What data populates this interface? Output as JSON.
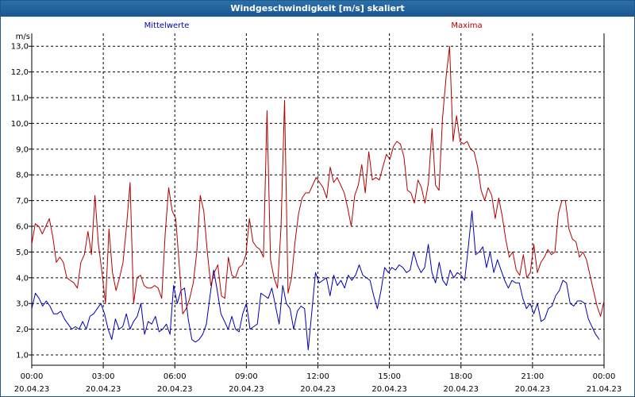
{
  "window": {
    "title": "Windgeschwindigkeit [m/s] skaliert"
  },
  "colors": {
    "mean": "#0000b4",
    "max": "#b40000",
    "grid": "#000000",
    "axis": "#000000"
  },
  "chart_data": {
    "type": "line",
    "title": "Windgeschwindigkeit [m/s] skaliert",
    "ylabel": "m/s",
    "xlabel": "",
    "ylim": [
      0.6,
      13.5
    ],
    "yticks": [
      "1,0",
      "2,0",
      "3,0",
      "4,0",
      "5,0",
      "6,0",
      "7,0",
      "8,0",
      "9,0",
      "10,0",
      "11,0",
      "12,0",
      "13,0"
    ],
    "ytick_values": [
      1,
      2,
      3,
      4,
      5,
      6,
      7,
      8,
      9,
      10,
      11,
      12,
      13
    ],
    "xlim_hours": [
      0,
      24
    ],
    "xticks": [
      {
        "time": "00:00",
        "date": "20.04.23"
      },
      {
        "time": "03:00",
        "date": "20.04.23"
      },
      {
        "time": "06:00",
        "date": "20.04.23"
      },
      {
        "time": "09:00",
        "date": "20.04.23"
      },
      {
        "time": "12:00",
        "date": "20.04.23"
      },
      {
        "time": "15:00",
        "date": "20.04.23"
      },
      {
        "time": "18:00",
        "date": "20.04.23"
      },
      {
        "time": "21:00",
        "date": "20.04.23"
      },
      {
        "time": "00:00",
        "date": "21.04.23"
      }
    ],
    "grid": true,
    "series": [
      {
        "name": "Mittelwerte",
        "color": "#0000b4",
        "values": [
          2.8,
          3.4,
          3.2,
          2.9,
          3.1,
          2.9,
          2.6,
          2.6,
          2.7,
          2.4,
          2.2,
          2.0,
          2.1,
          2.0,
          2.3,
          2.0,
          2.5,
          2.6,
          2.8,
          3.0,
          2.6,
          2.0,
          1.6,
          2.4,
          2.0,
          2.1,
          2.6,
          2.0,
          2.3,
          2.5,
          3.0,
          1.8,
          2.3,
          2.2,
          2.5,
          1.9,
          2.0,
          2.2,
          1.8,
          3.7,
          3.0,
          3.5,
          3.6,
          2.4,
          1.6,
          1.5,
          1.6,
          1.8,
          2.2,
          3.3,
          4.3,
          3.5,
          2.6,
          2.3,
          2.0,
          2.5,
          2.0,
          1.9,
          2.6,
          3.0,
          2.0,
          2.1,
          2.2,
          3.4,
          3.3,
          3.2,
          3.6,
          2.9,
          2.2,
          3.7,
          3.0,
          2.8,
          2.0,
          2.7,
          2.9,
          2.8,
          1.2,
          2.7,
          4.2,
          3.8,
          3.9,
          4.0,
          3.3,
          4.1,
          3.7,
          3.9,
          3.6,
          4.1,
          3.9,
          4.1,
          4.5,
          4.1,
          4.0,
          3.9,
          3.3,
          2.8,
          3.5,
          4.4,
          4.2,
          4.4,
          4.3,
          4.5,
          4.4,
          4.2,
          4.3,
          5.0,
          4.5,
          4.2,
          4.4,
          5.3,
          4.2,
          3.8,
          4.6,
          3.9,
          3.7,
          4.3,
          4.0,
          4.2,
          4.1,
          3.9,
          5.2,
          6.6,
          4.9,
          5.0,
          5.2,
          4.4,
          5.0,
          4.2,
          4.7,
          4.3,
          3.9,
          3.6,
          3.9,
          3.8,
          3.8,
          3.2,
          2.8,
          3.0,
          2.6,
          3.0,
          2.3,
          2.4,
          2.8,
          2.9,
          3.3,
          3.5,
          3.9,
          3.8,
          3.0,
          2.9,
          3.1,
          3.1,
          3.0,
          2.4,
          2.1,
          1.8,
          1.6
        ],
        "x_start_hours": 0.0,
        "x_end_hours": 23.8
      },
      {
        "name": "Maxima",
        "color": "#b40000",
        "values": [
          5.3,
          6.1,
          6.0,
          5.7,
          6.0,
          6.3,
          5.6,
          4.6,
          4.8,
          4.6,
          4.0,
          3.9,
          3.8,
          3.6,
          4.6,
          4.9,
          5.8,
          4.9,
          7.2,
          5.3,
          4.2,
          3.0,
          5.9,
          4.2,
          3.5,
          4.0,
          4.6,
          6.0,
          7.7,
          3.0,
          4.0,
          4.1,
          3.7,
          3.6,
          3.6,
          3.7,
          3.6,
          3.2,
          5.7,
          7.5,
          6.6,
          6.3,
          4.5,
          2.6,
          2.8,
          3.2,
          3.8,
          5.0,
          7.2,
          6.6,
          5.0,
          3.7,
          4.2,
          4.5,
          3.3,
          3.2,
          4.8,
          4.1,
          4.0,
          4.4,
          4.5,
          4.9,
          6.3,
          5.4,
          5.2,
          5.1,
          4.8,
          10.5,
          4.7,
          4.0,
          3.6,
          6.0,
          10.9,
          3.4,
          4.0,
          5.4,
          6.5,
          7.1,
          7.3,
          7.3,
          7.6,
          7.9,
          7.7,
          7.5,
          7.1,
          8.3,
          7.7,
          7.9,
          7.6,
          7.3,
          6.7,
          6.0,
          7.2,
          7.6,
          8.4,
          7.3,
          8.9,
          7.8,
          7.9,
          7.8,
          8.3,
          8.8,
          8.6,
          9.1,
          9.3,
          9.2,
          8.7,
          7.4,
          7.3,
          6.9,
          7.8,
          7.5,
          6.9,
          7.7,
          9.8,
          7.6,
          7.4,
          10.2,
          11.8,
          13.0,
          9.3,
          10.3,
          9.3,
          9.2,
          9.3,
          9.0,
          8.9,
          8.3,
          7.4,
          7.0,
          7.5,
          7.2,
          6.3,
          7.1,
          6.4,
          5.5,
          4.8,
          5.0,
          4.3,
          4.1,
          4.9,
          4.0,
          4.2,
          5.3,
          4.2,
          4.6,
          4.8,
          5.1,
          4.9,
          5.0,
          6.5,
          7.0,
          7.0,
          5.9,
          5.5,
          5.4,
          4.8,
          5.0,
          4.7,
          4.1,
          3.5,
          2.9,
          2.5,
          3.1
        ],
        "x_start_hours": 0.0,
        "x_end_hours": 24.0
      }
    ]
  }
}
